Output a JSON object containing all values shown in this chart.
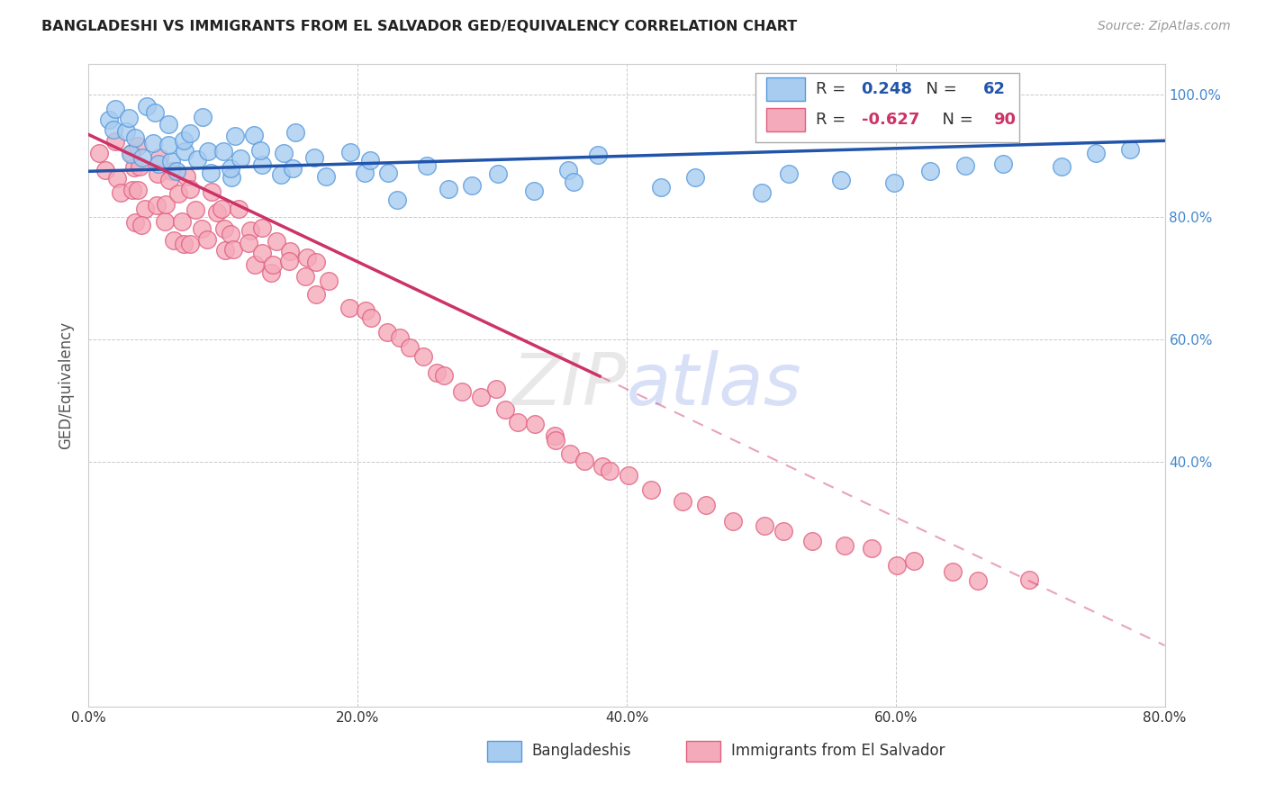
{
  "title": "BANGLADESHI VS IMMIGRANTS FROM EL SALVADOR GED/EQUIVALENCY CORRELATION CHART",
  "source": "Source: ZipAtlas.com",
  "ylabel": "GED/Equivalency",
  "xlim": [
    0.0,
    0.8
  ],
  "ylim": [
    0.0,
    1.05
  ],
  "yticks": [
    0.4,
    0.6,
    0.8,
    1.0
  ],
  "ytick_labels": [
    "40.0%",
    "60.0%",
    "80.0%",
    "100.0%"
  ],
  "xticks": [
    0.0,
    0.2,
    0.4,
    0.6,
    0.8
  ],
  "xtick_labels": [
    "0.0%",
    "20.0%",
    "40.0%",
    "60.0%",
    "80.0%"
  ],
  "blue_R": 0.248,
  "blue_N": 62,
  "pink_R": -0.627,
  "pink_N": 90,
  "blue_color": "#A8CCF0",
  "pink_color": "#F5AABB",
  "blue_edge_color": "#5599DD",
  "pink_edge_color": "#E06080",
  "blue_line_color": "#2255AA",
  "pink_line_color": "#CC3366",
  "legend_blue_label": "Bangladeshis",
  "legend_pink_label": "Immigrants from El Salvador",
  "background_color": "#ffffff",
  "grid_color": "#bbbbbb",
  "title_color": "#222222",
  "axis_label_color": "#555555",
  "right_tick_color": "#4488CC",
  "blue_scatter_x": [
    0.01,
    0.02,
    0.02,
    0.03,
    0.03,
    0.03,
    0.04,
    0.04,
    0.04,
    0.05,
    0.05,
    0.05,
    0.06,
    0.06,
    0.06,
    0.07,
    0.07,
    0.07,
    0.08,
    0.08,
    0.08,
    0.09,
    0.09,
    0.1,
    0.1,
    0.11,
    0.11,
    0.12,
    0.12,
    0.13,
    0.13,
    0.14,
    0.15,
    0.15,
    0.16,
    0.17,
    0.18,
    0.19,
    0.2,
    0.21,
    0.22,
    0.23,
    0.25,
    0.27,
    0.29,
    0.31,
    0.33,
    0.35,
    0.36,
    0.38,
    0.42,
    0.45,
    0.5,
    0.52,
    0.56,
    0.6,
    0.63,
    0.65,
    0.68,
    0.72,
    0.75,
    0.78
  ],
  "blue_scatter_y": [
    0.96,
    0.93,
    0.98,
    0.91,
    0.95,
    0.97,
    0.9,
    0.94,
    0.97,
    0.89,
    0.92,
    0.96,
    0.88,
    0.92,
    0.95,
    0.87,
    0.91,
    0.94,
    0.89,
    0.93,
    0.96,
    0.88,
    0.91,
    0.87,
    0.91,
    0.87,
    0.92,
    0.89,
    0.93,
    0.88,
    0.91,
    0.87,
    0.91,
    0.88,
    0.92,
    0.89,
    0.87,
    0.91,
    0.88,
    0.89,
    0.87,
    0.84,
    0.88,
    0.85,
    0.84,
    0.87,
    0.83,
    0.88,
    0.86,
    0.9,
    0.84,
    0.86,
    0.85,
    0.87,
    0.86,
    0.86,
    0.88,
    0.87,
    0.89,
    0.89,
    0.9,
    0.91
  ],
  "pink_scatter_x": [
    0.01,
    0.01,
    0.02,
    0.02,
    0.02,
    0.03,
    0.03,
    0.03,
    0.03,
    0.04,
    0.04,
    0.04,
    0.04,
    0.04,
    0.05,
    0.05,
    0.05,
    0.05,
    0.06,
    0.06,
    0.06,
    0.06,
    0.07,
    0.07,
    0.07,
    0.07,
    0.08,
    0.08,
    0.08,
    0.08,
    0.09,
    0.09,
    0.09,
    0.1,
    0.1,
    0.1,
    0.11,
    0.11,
    0.11,
    0.12,
    0.12,
    0.12,
    0.13,
    0.13,
    0.13,
    0.14,
    0.14,
    0.15,
    0.15,
    0.16,
    0.16,
    0.17,
    0.17,
    0.18,
    0.19,
    0.2,
    0.21,
    0.22,
    0.23,
    0.24,
    0.25,
    0.26,
    0.27,
    0.28,
    0.29,
    0.3,
    0.31,
    0.32,
    0.33,
    0.34,
    0.35,
    0.36,
    0.37,
    0.38,
    0.39,
    0.4,
    0.42,
    0.44,
    0.46,
    0.48,
    0.5,
    0.52,
    0.54,
    0.56,
    0.58,
    0.6,
    0.62,
    0.64,
    0.66,
    0.7
  ],
  "pink_scatter_y": [
    0.92,
    0.87,
    0.91,
    0.86,
    0.83,
    0.91,
    0.88,
    0.85,
    0.8,
    0.92,
    0.89,
    0.85,
    0.82,
    0.79,
    0.9,
    0.87,
    0.83,
    0.79,
    0.89,
    0.86,
    0.82,
    0.78,
    0.87,
    0.83,
    0.79,
    0.76,
    0.85,
    0.81,
    0.78,
    0.75,
    0.84,
    0.8,
    0.76,
    0.82,
    0.79,
    0.75,
    0.81,
    0.78,
    0.74,
    0.79,
    0.76,
    0.73,
    0.78,
    0.74,
    0.71,
    0.77,
    0.73,
    0.75,
    0.72,
    0.74,
    0.7,
    0.72,
    0.68,
    0.7,
    0.67,
    0.65,
    0.63,
    0.62,
    0.6,
    0.58,
    0.57,
    0.55,
    0.54,
    0.52,
    0.51,
    0.5,
    0.49,
    0.47,
    0.46,
    0.44,
    0.43,
    0.42,
    0.41,
    0.4,
    0.38,
    0.37,
    0.36,
    0.34,
    0.33,
    0.31,
    0.3,
    0.28,
    0.28,
    0.26,
    0.25,
    0.24,
    0.23,
    0.22,
    0.21,
    0.2
  ],
  "blue_line_x0": 0.0,
  "blue_line_y0": 0.875,
  "blue_line_x1": 0.8,
  "blue_line_y1": 0.925,
  "pink_line_solid_x0": 0.0,
  "pink_line_solid_y0": 0.935,
  "pink_line_solid_x1": 0.38,
  "pink_line_solid_y1": 0.54,
  "pink_line_dash_x1": 0.8,
  "pink_line_dash_y1": 0.1
}
